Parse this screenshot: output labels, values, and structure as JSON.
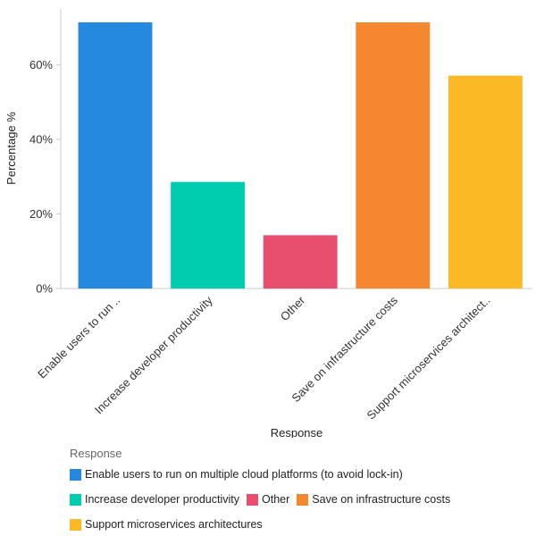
{
  "chart_data": {
    "type": "bar",
    "title": "",
    "xlabel": "Response",
    "ylabel": "Percentage %",
    "ylim": [
      0,
      75
    ],
    "yticks": [
      0,
      20,
      40,
      60
    ],
    "ytick_labels": [
      "0%",
      "20%",
      "40%",
      "60%"
    ],
    "grid": false,
    "categories": [
      "Enable users to run on multiple cloud platforms (to avoid lock-in)",
      "Increase developer productivity",
      "Other",
      "Save on infrastructure costs",
      "Support microservices architectures"
    ],
    "category_tick_labels": [
      "Enable users to run ..",
      "Increase developer productivity",
      "Other",
      "Save on infrastructure costs",
      "Support microservices architect.."
    ],
    "values": [
      71.4,
      28.6,
      14.3,
      71.4,
      57.1
    ],
    "colors": [
      "#2589e0",
      "#00cdb0",
      "#e84e6e",
      "#f5872e",
      "#fbb926"
    ],
    "legend_title": "Response",
    "legend_position": "bottom"
  }
}
